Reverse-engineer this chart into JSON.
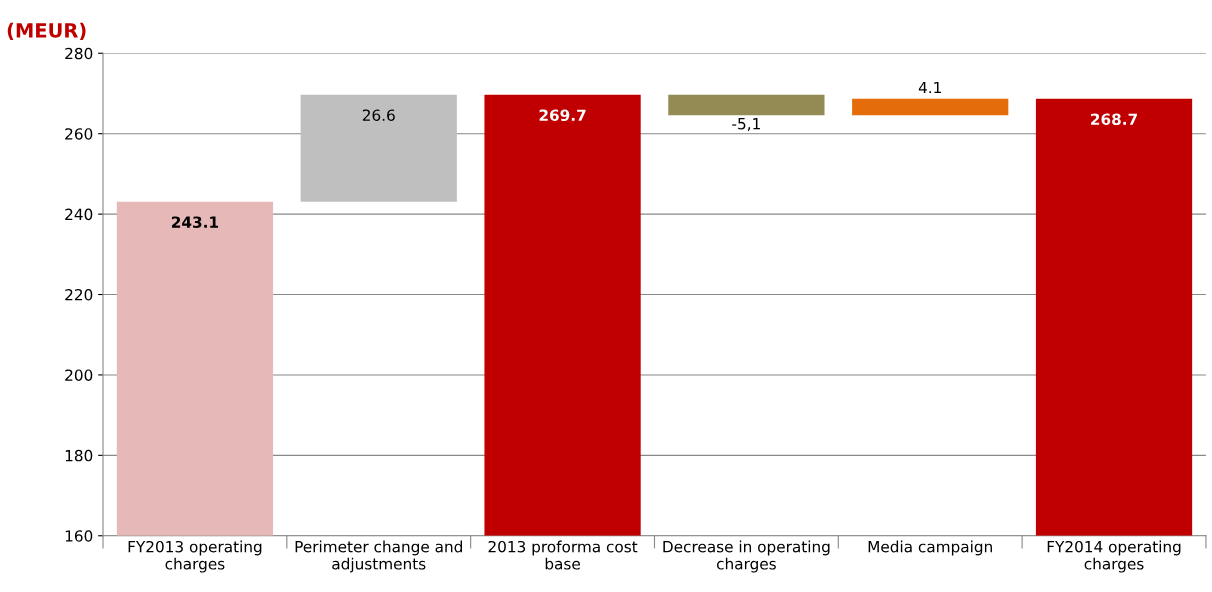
{
  "chart_data": {
    "type": "bar",
    "ylabel": "(MEUR)",
    "categories": [
      "FY2013 operating\ncharges",
      "Perimeter change and\nadjustments",
      "2013 proforma cost\nbase",
      "Decrease in operating\ncharges",
      "Media campaign",
      "FY2014 operating\ncharges"
    ],
    "base": [
      160,
      243.1,
      160,
      269.7,
      264.6,
      160
    ],
    "values": [
      83.1,
      26.6,
      109.7,
      -5.1,
      4.1,
      108.7
    ],
    "colors": [
      "#e6b8b7",
      "#bfbfbf",
      "#c00000",
      "#948a54",
      "#e46c0a",
      "#c00000"
    ],
    "value_labels": [
      "243.1",
      "26.6",
      "269.7",
      "-5,1",
      "4.1",
      "268.7"
    ],
    "ylim": [
      160,
      280
    ],
    "yticks": [
      160,
      180,
      200,
      220,
      240,
      260,
      280
    ],
    "grid": "y",
    "legend": false
  }
}
